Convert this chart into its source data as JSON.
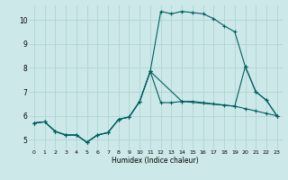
{
  "xlabel": "Humidex (Indice chaleur)",
  "bg_color": "#cce8e8",
  "line_color": "#006060",
  "grid_color": "#aad0d0",
  "xlim": [
    -0.5,
    23.5
  ],
  "ylim": [
    4.6,
    10.6
  ],
  "xticks": [
    0,
    1,
    2,
    3,
    4,
    5,
    6,
    7,
    8,
    9,
    10,
    11,
    12,
    13,
    14,
    15,
    16,
    17,
    18,
    19,
    20,
    21,
    22,
    23
  ],
  "yticks": [
    5,
    6,
    7,
    8,
    9,
    10
  ],
  "line1_x": [
    0,
    1,
    2,
    3,
    4,
    5,
    6,
    7,
    8,
    9,
    10,
    11,
    12,
    13,
    14,
    15,
    16,
    17,
    18,
    19,
    20,
    21,
    22,
    23
  ],
  "line1_y": [
    5.7,
    5.75,
    5.35,
    5.2,
    5.2,
    4.9,
    5.2,
    5.3,
    5.85,
    5.95,
    6.6,
    7.85,
    10.35,
    10.25,
    10.35,
    10.3,
    10.25,
    10.05,
    9.75,
    9.5,
    8.05,
    7.0,
    6.65,
    6.0
  ],
  "line2_x": [
    0,
    1,
    2,
    3,
    4,
    5,
    6,
    7,
    8,
    9,
    10,
    11,
    12,
    13,
    14,
    15,
    16,
    17,
    18,
    19,
    20,
    21,
    22,
    23
  ],
  "line2_y": [
    5.7,
    5.75,
    5.35,
    5.2,
    5.2,
    4.9,
    5.2,
    5.3,
    5.85,
    5.95,
    6.6,
    7.85,
    6.55,
    6.55,
    6.6,
    6.6,
    6.55,
    6.5,
    6.45,
    6.4,
    6.3,
    6.2,
    6.1,
    6.0
  ],
  "line3_x": [
    0,
    1,
    2,
    3,
    4,
    5,
    6,
    7,
    8,
    9,
    10,
    11,
    14,
    19,
    20,
    21,
    22,
    23
  ],
  "line3_y": [
    5.7,
    5.75,
    5.35,
    5.2,
    5.2,
    4.9,
    5.2,
    5.3,
    5.85,
    5.95,
    6.6,
    7.85,
    6.6,
    6.4,
    8.05,
    7.0,
    6.65,
    6.0
  ]
}
